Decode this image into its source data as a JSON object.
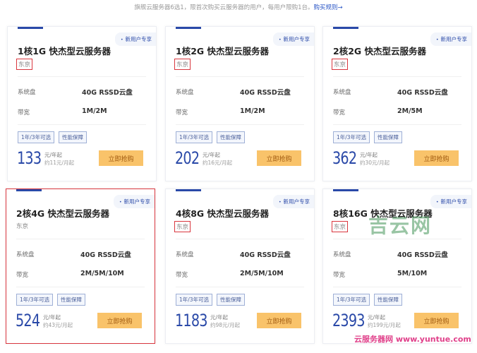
{
  "notice": {
    "text": "旗舰云服务器6选1，限首次购买云服务器的用户，每用户限购1台。",
    "link": "购买规则→"
  },
  "common": {
    "badge": "新用户专享",
    "disk_label": "系统盘",
    "bw_label": "带宽",
    "tag1": "1年/3年可选",
    "tag2": "性能保障",
    "unit_year": "元/年起",
    "buy": "立即抢购"
  },
  "cards": [
    {
      "title": "1核1G 快杰型云服务器",
      "region": "东京",
      "disk": "40G RSSD云盘",
      "bandwidth": "1M/2M",
      "price": "133",
      "monthly": "约11元/月起",
      "highlighted": false
    },
    {
      "title": "1核2G 快杰型云服务器",
      "region": "东京",
      "disk": "40G RSSD云盘",
      "bandwidth": "1M/2M",
      "price": "202",
      "monthly": "约16元/月起",
      "highlighted": false
    },
    {
      "title": "2核2G 快杰型云服务器",
      "region": "东京",
      "disk": "40G RSSD云盘",
      "bandwidth": "2M/5M",
      "price": "362",
      "monthly": "约30元/月起",
      "highlighted": false
    },
    {
      "title": "2核4G 快杰型云服务器",
      "region": "东京",
      "disk": "40G RSSD云盘",
      "bandwidth": "2M/5M/10M",
      "price": "524",
      "monthly": "约43元/月起",
      "highlighted": true
    },
    {
      "title": "4核8G 快杰型云服务器",
      "region": "东京",
      "disk": "40G RSSD云盘",
      "bandwidth": "2M/5M/10M",
      "price": "1183",
      "monthly": "约98元/月起",
      "highlighted": false
    },
    {
      "title": "8核16G 快杰型云服务器",
      "region": "东京",
      "disk": "40G RSSD云盘",
      "bandwidth": "5M/10M",
      "price": "2393",
      "monthly": "约199元/月起",
      "highlighted": false
    }
  ],
  "watermark": {
    "logo": "吉云网",
    "site": "云服务器网 www.yuntue.com"
  },
  "colors": {
    "accent": "#2a49a8",
    "button": "#f9c36a",
    "highlight": "#d9363e"
  }
}
